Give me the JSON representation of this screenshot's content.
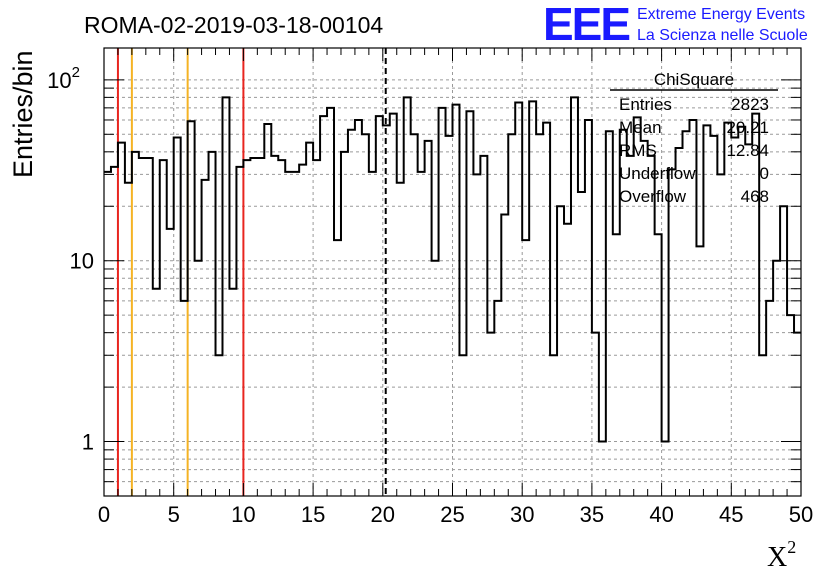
{
  "chart_data": {
    "type": "histogram",
    "title": "ROMA-02-2019-03-18-00104",
    "ylabel": "Entries/bin",
    "xlabel": "X",
    "xlabel_sup": "2",
    "yscale": "log",
    "xlim": [
      0,
      50
    ],
    "ylim": [
      0.5,
      150
    ],
    "bin_width": 0.5,
    "x_ticks": [
      0,
      5,
      10,
      15,
      20,
      25,
      30,
      35,
      40,
      45,
      50
    ],
    "y_ticks": [
      {
        "value": 1,
        "label": "1"
      },
      {
        "value": 10,
        "label": "10"
      },
      {
        "value": 100,
        "label": "10",
        "sup": "2"
      }
    ],
    "values": [
      31,
      33,
      45,
      27,
      40,
      37,
      37,
      7,
      36,
      15,
      48,
      6,
      59,
      10,
      28,
      40,
      3,
      80,
      7,
      33,
      36,
      37,
      37,
      57,
      38,
      36,
      31,
      31,
      34,
      45,
      36,
      63,
      70,
      13,
      40,
      53,
      60,
      50,
      31,
      63,
      56,
      65,
      27,
      80,
      50,
      31,
      46,
      10,
      70,
      49,
      73,
      3,
      67,
      30,
      38,
      4,
      6,
      18,
      50,
      75,
      13,
      76,
      50,
      58,
      3,
      20,
      16,
      80,
      24,
      60,
      4,
      1,
      52,
      14,
      53,
      38,
      62,
      46,
      38,
      14,
      1,
      32,
      42,
      52,
      60,
      12,
      56,
      49,
      30,
      58,
      48,
      55,
      44,
      65,
      3,
      6,
      10,
      20,
      5,
      4
    ],
    "vertical_lines": [
      {
        "x": 1,
        "color": "#e8251f",
        "style": "solid"
      },
      {
        "x": 2,
        "color": "#f5b324",
        "style": "solid"
      },
      {
        "x": 6,
        "color": "#f5b324",
        "style": "solid"
      },
      {
        "x": 10,
        "color": "#e8251f",
        "style": "solid"
      },
      {
        "x": 20.21,
        "color": "#000000",
        "style": "dashed"
      }
    ],
    "stats_box": {
      "title": "ChiSquare",
      "rows": [
        {
          "label": "Entries",
          "value": "2823"
        },
        {
          "label": "Mean",
          "value": "20.21"
        },
        {
          "label": "RMS",
          "value": "12.84"
        },
        {
          "label": "Underflow",
          "value": "0"
        },
        {
          "label": "Overflow",
          "value": "468"
        }
      ]
    }
  },
  "logo": {
    "mark": "EEE",
    "line1": "Extreme Energy Events",
    "line2": "La Scienza nelle Scuole",
    "color": "#1a1aff"
  }
}
